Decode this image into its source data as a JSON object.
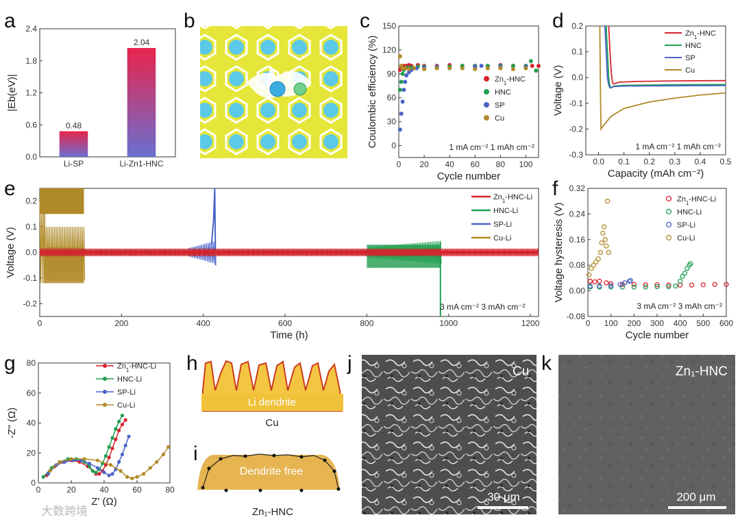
{
  "panel_labels": [
    "a",
    "b",
    "c",
    "d",
    "e",
    "f",
    "g",
    "h",
    "i",
    "j",
    "k"
  ],
  "colors": {
    "zn_hnc": "#d7232d",
    "hnc": "#1f9e4f",
    "sp": "#4a63c8",
    "cu": "#b08a28",
    "grad_top": "#e8244b",
    "grad_bottom": "#6a6fd1",
    "dft_bg": "#e6e63a",
    "dft_atom": "#5cc9e8",
    "dendrite_fill": "#f4c542",
    "dendrite_edge": "#cc3b1b"
  },
  "chart_data": [
    {
      "id": "a",
      "type": "bar",
      "categories": [
        "Li-SP",
        "Li-Zn1-HNC"
      ],
      "values": [
        0.48,
        2.04
      ],
      "value_labels": [
        "0.48",
        "2.04"
      ],
      "ylabel": "|Eb(eV)|",
      "ylim": [
        0,
        2.4
      ],
      "yticks": [
        "0.0",
        "0.6",
        "1.2",
        "1.8",
        "2.4"
      ]
    },
    {
      "id": "c",
      "type": "scatter",
      "xlabel": "Cycle number",
      "ylabel": "Coulombic efficiency (%)",
      "xlim": [
        0,
        110
      ],
      "ylim": [
        -15,
        150
      ],
      "xticks": [
        "0",
        "20",
        "40",
        "60",
        "80",
        "100"
      ],
      "yticks": [
        "0",
        "30",
        "60",
        "90",
        "120",
        "150"
      ],
      "annotation": "1 mA cm⁻² 1 mAh cm⁻²",
      "legend": [
        "Zn1-HNC",
        "HNC",
        "SP",
        "Cu"
      ],
      "series": [
        {
          "name": "Zn1-HNC",
          "x": [
            1,
            2,
            3,
            4,
            6,
            8,
            10,
            15,
            20,
            30,
            40,
            50,
            60,
            70,
            80,
            90,
            100,
            105,
            110
          ],
          "y": [
            95,
            97,
            99,
            100,
            100,
            101,
            100,
            101,
            100,
            100,
            101,
            100,
            100,
            100,
            101,
            100,
            100,
            100,
            100
          ]
        },
        {
          "name": "HNC",
          "x": [
            1,
            2,
            3,
            4,
            5,
            7,
            10,
            15,
            20,
            30,
            40,
            50,
            60,
            70,
            80,
            90,
            100,
            104,
            108
          ],
          "y": [
            70,
            80,
            90,
            95,
            97,
            98,
            98,
            99,
            99,
            99,
            99,
            100,
            100,
            100,
            100,
            100,
            100,
            106,
            94
          ]
        },
        {
          "name": "SP",
          "x": [
            1,
            2,
            3,
            4,
            5,
            6,
            8,
            10,
            14,
            20,
            30,
            60,
            65,
            80,
            100
          ],
          "y": [
            20,
            40,
            55,
            70,
            80,
            88,
            92,
            95,
            97,
            98,
            99,
            99,
            100,
            99,
            99
          ]
        },
        {
          "name": "Cu",
          "x": [
            1,
            2,
            3,
            5,
            8,
            12,
            20,
            30,
            40,
            50,
            60,
            70,
            80,
            90,
            100
          ],
          "y": [
            112,
            100,
            97,
            97,
            96,
            97,
            96,
            97,
            97,
            97,
            96,
            97,
            97,
            96,
            97
          ]
        }
      ]
    },
    {
      "id": "d",
      "type": "line",
      "xlabel": "Capacity (mAh cm⁻²)",
      "ylabel": "Voltage (V)",
      "xlim": [
        -0.05,
        0.5
      ],
      "ylim": [
        -0.3,
        0.2
      ],
      "xticks": [
        "0.0",
        "0.1",
        "0.2",
        "0.3",
        "0.4",
        "0.5"
      ],
      "yticks": [
        "-0.3",
        "-0.2",
        "-0.1",
        "0.0",
        "0.1",
        "0.2"
      ],
      "annotation": "1 mA cm⁻² 1 mAh cm⁻²",
      "legend": [
        "Zn1-HNC",
        "HNC",
        "SP",
        "Cu"
      ],
      "series": [
        {
          "name": "Zn1-HNC",
          "x": [
            0.04,
            0.045,
            0.05,
            0.055,
            0.06,
            0.08,
            0.15,
            0.3,
            0.5
          ],
          "y": [
            0.2,
            0.1,
            0.02,
            -0.02,
            -0.025,
            -0.018,
            -0.015,
            -0.013,
            -0.012
          ]
        },
        {
          "name": "HNC",
          "x": [
            0.03,
            0.035,
            0.04,
            0.045,
            0.05,
            0.06,
            0.1,
            0.3,
            0.5
          ],
          "y": [
            0.2,
            0.1,
            0.0,
            -0.035,
            -0.04,
            -0.033,
            -0.03,
            -0.028,
            -0.027
          ]
        },
        {
          "name": "SP",
          "x": [
            0.025,
            0.03,
            0.035,
            0.04,
            0.045,
            0.06,
            0.1,
            0.3,
            0.5
          ],
          "y": [
            0.2,
            0.1,
            0.0,
            -0.03,
            -0.04,
            -0.035,
            -0.033,
            -0.032,
            -0.031
          ]
        },
        {
          "name": "Cu",
          "x": [
            0.005,
            0.008,
            0.01,
            0.02,
            0.05,
            0.1,
            0.2,
            0.3,
            0.4,
            0.5
          ],
          "y": [
            0.2,
            -0.1,
            -0.2,
            -0.185,
            -0.15,
            -0.12,
            -0.095,
            -0.08,
            -0.068,
            -0.06
          ]
        }
      ]
    },
    {
      "id": "e",
      "type": "line",
      "xlabel": "Time (h)",
      "ylabel": "Voltage (V)",
      "xlim": [
        0,
        1220
      ],
      "ylim": [
        -0.25,
        0.25
      ],
      "xticks": [
        "0",
        "200",
        "400",
        "600",
        "800",
        "1000",
        "1200"
      ],
      "yticks": [
        "-0.2",
        "-0.1",
        "0.0",
        "0.1",
        "0.2"
      ],
      "annotation": "3 mA cm⁻² 3 mAh cm⁻²",
      "legend": [
        "Zn1-HNC-Li",
        "HNC-Li",
        "SP-Li",
        "Cu-Li"
      ],
      "series": [
        {
          "name": "Cu-Li",
          "end_time_h": 108,
          "amplitude_v": [
            0.25,
            -0.12
          ]
        },
        {
          "name": "SP-Li",
          "end_time_h": 430,
          "amplitude_v": [
            0.25,
            -0.05
          ]
        },
        {
          "name": "HNC-Li",
          "end_time_h": 980,
          "amplitude_v": [
            0.045,
            -0.25
          ]
        },
        {
          "name": "Zn1-HNC-Li",
          "end_time_h": 1220,
          "amplitude_v": [
            0.02,
            -0.02
          ]
        }
      ]
    },
    {
      "id": "f",
      "type": "scatter",
      "xlabel": "Cycle number",
      "ylabel": "Voltage hysteresis (V)",
      "xlim": [
        0,
        600
      ],
      "ylim": [
        -0.08,
        0.32
      ],
      "xticks": [
        "0",
        "100",
        "200",
        "300",
        "400",
        "500",
        "600"
      ],
      "yticks": [
        "-0.08",
        "0.00",
        "0.08",
        "0.16",
        "0.24",
        "0.32"
      ],
      "annotation": "3 mA cm⁻² 3 mAh cm⁻²",
      "legend": [
        "Zn1-HNC-Li",
        "HNC-Li",
        "SP-Li",
        "Cu-Li"
      ],
      "series": [
        {
          "name": "Zn1-HNC-Li",
          "x": [
            10,
            30,
            50,
            80,
            100,
            150,
            200,
            250,
            300,
            350,
            400,
            450,
            500,
            550,
            600
          ],
          "y": [
            0.03,
            0.028,
            0.03,
            0.025,
            0.022,
            0.02,
            0.02,
            0.019,
            0.019,
            0.018,
            0.018,
            0.018,
            0.019,
            0.02,
            0.02
          ]
        },
        {
          "name": "HNC-Li",
          "x": [
            10,
            50,
            100,
            150,
            200,
            250,
            300,
            350,
            380,
            400,
            410,
            420,
            430,
            440,
            445
          ],
          "y": [
            0.012,
            0.012,
            0.012,
            0.012,
            0.012,
            0.012,
            0.013,
            0.013,
            0.015,
            0.03,
            0.045,
            0.055,
            0.07,
            0.08,
            0.085
          ]
        },
        {
          "name": "SP-Li",
          "x": [
            10,
            50,
            100,
            140,
            160,
            180,
            185
          ],
          "y": [
            0.015,
            0.015,
            0.016,
            0.02,
            0.025,
            0.03,
            0.032
          ]
        },
        {
          "name": "Cu-Li",
          "x": [
            5,
            15,
            25,
            35,
            45,
            55,
            60,
            65,
            70,
            75,
            80,
            85,
            90
          ],
          "y": [
            0.05,
            0.07,
            0.08,
            0.09,
            0.1,
            0.12,
            0.15,
            0.18,
            0.2,
            0.16,
            0.14,
            0.28,
            0.12
          ]
        }
      ]
    },
    {
      "id": "g",
      "type": "line",
      "xlabel": "Z' (Ω)",
      "ylabel": "-Z'' (Ω)",
      "xlim": [
        0,
        80
      ],
      "ylim": [
        0,
        80
      ],
      "xticks": [
        "0",
        "20",
        "40",
        "60",
        "80"
      ],
      "yticks": [
        "0",
        "20",
        "40",
        "60",
        "80"
      ],
      "legend": [
        "Zn1-HNC-Li",
        "HNC-Li",
        "SP-Li",
        "Cu-Li"
      ],
      "series": [
        {
          "name": "Zn1-HNC-Li",
          "x": [
            5,
            10,
            15,
            20,
            25,
            30,
            33,
            35,
            37,
            39,
            41,
            43,
            45,
            47,
            49,
            51,
            53
          ],
          "y": [
            5,
            11,
            14,
            15,
            14,
            11,
            8,
            6,
            6,
            8,
            12,
            17,
            23,
            29,
            35,
            39,
            42
          ]
        },
        {
          "name": "HNC-Li",
          "x": [
            3,
            8,
            13,
            18,
            23,
            28,
            31,
            33,
            35,
            37,
            39,
            41,
            43,
            45,
            47,
            49,
            51
          ],
          "y": [
            4,
            10,
            14,
            16,
            16,
            14,
            11,
            8,
            7,
            9,
            13,
            18,
            24,
            30,
            36,
            41,
            45
          ]
        },
        {
          "name": "SP-Li",
          "x": [
            6,
            11,
            16,
            21,
            26,
            31,
            36,
            40,
            43,
            45,
            47,
            49,
            51,
            53,
            55
          ],
          "y": [
            6,
            12,
            14,
            15,
            15,
            13,
            10,
            7,
            5,
            6,
            9,
            14,
            19,
            25,
            31
          ]
        },
        {
          "name": "Cu-Li",
          "x": [
            7,
            13,
            20,
            28,
            36,
            44,
            50,
            54,
            57,
            60,
            64,
            68,
            72,
            76,
            79
          ],
          "y": [
            8,
            14,
            16,
            16,
            15,
            12,
            8,
            4,
            3,
            4,
            6,
            10,
            14,
            19,
            24
          ]
        }
      ]
    }
  ],
  "panel_h": {
    "substrate_label": "Cu",
    "inner_label": "Li dendrite"
  },
  "panel_i": {
    "substrate_label": "Zn₁-HNC",
    "inner_label": "Dendrite free"
  },
  "panel_j": {
    "title": "Cu",
    "scalebar": "30 μm"
  },
  "panel_k": {
    "title": "Zn₁-HNC",
    "scalebar": "200 μm"
  },
  "watermark": "大数跨境"
}
